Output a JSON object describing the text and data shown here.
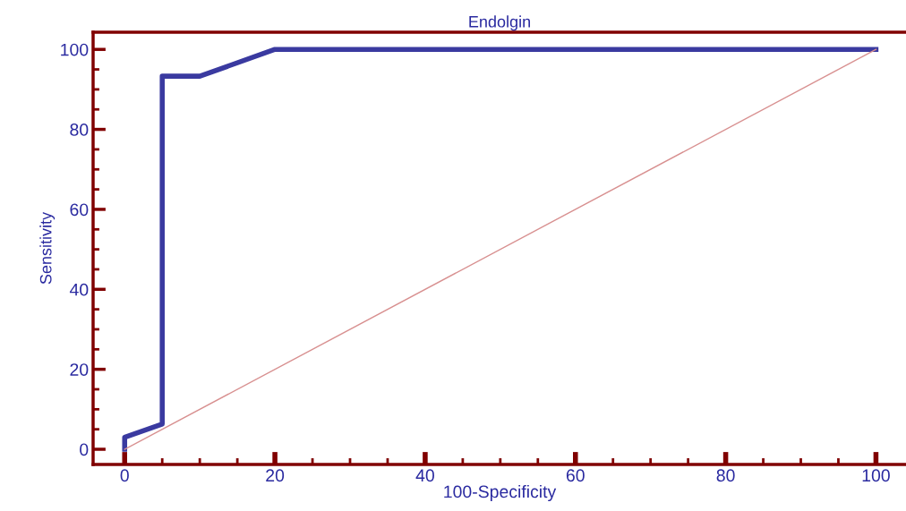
{
  "chart_data": {
    "type": "line",
    "title": "Endolgin",
    "xlabel": "100-Specificity",
    "ylabel": "Sensitivity",
    "series": [
      {
        "x": [
          0,
          0,
          5,
          5,
          10,
          20,
          100
        ],
        "values": [
          0,
          3,
          6.3,
          93.3,
          93.3,
          100,
          100
        ],
        "color": "#3a3aa0"
      },
      {
        "x": [
          0,
          100
        ],
        "values": [
          0,
          100
        ],
        "color": "#d89090"
      }
    ],
    "xlim": [
      -4.2,
      104
    ],
    "ylim": [
      -3.8,
      104.3
    ],
    "xticks": [
      0,
      20,
      40,
      60,
      80,
      100
    ],
    "yticks": [
      0,
      20,
      40,
      60,
      80,
      100
    ],
    "grid": false,
    "legend": false,
    "marker": "none",
    "line_style": "solid"
  }
}
